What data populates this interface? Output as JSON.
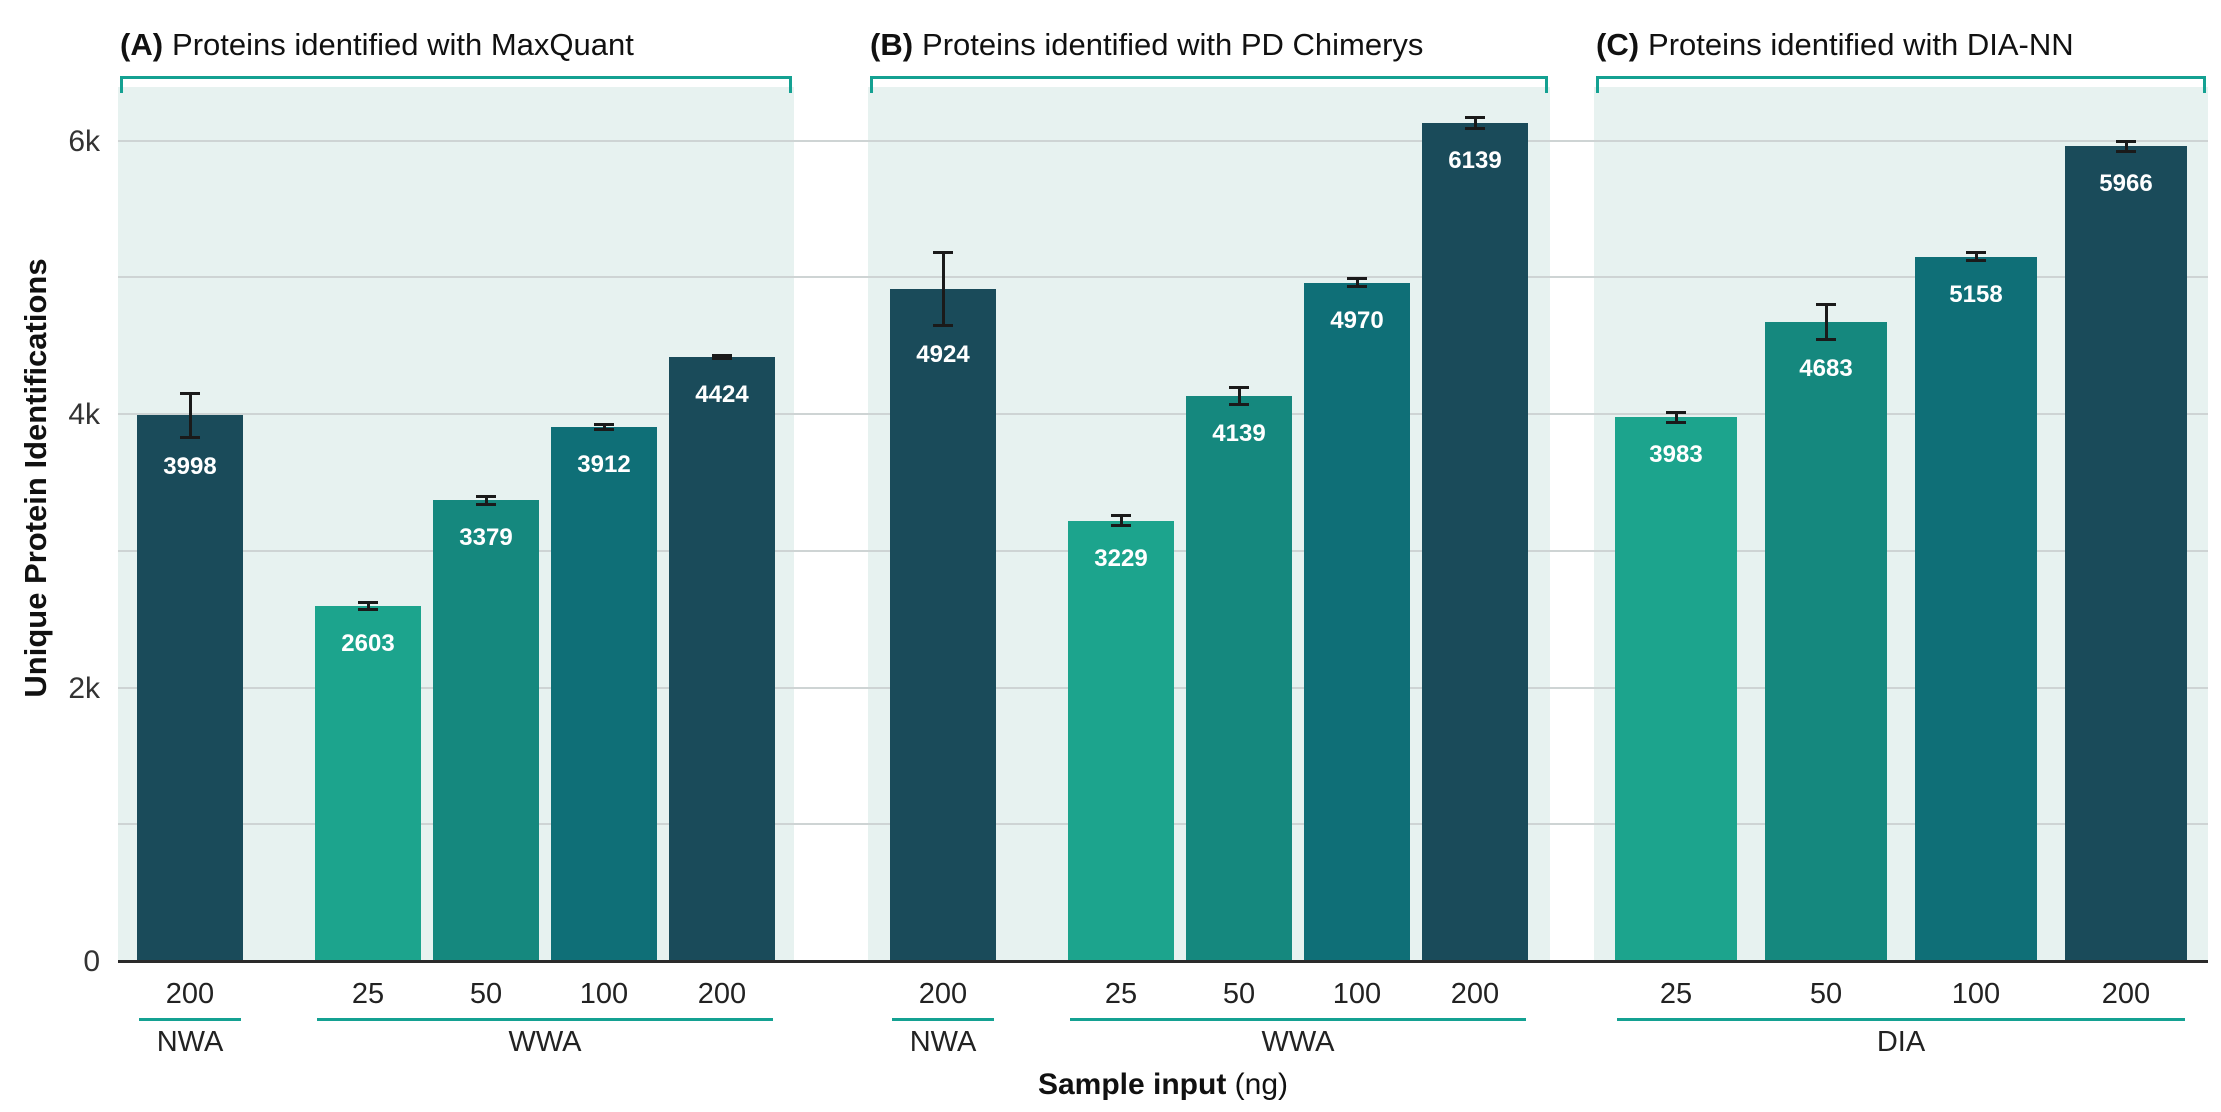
{
  "figure": {
    "y_axis_title": "Unique Protein Identifications",
    "x_axis_title_bold": "Sample input",
    "x_axis_title_unit": " (ng)"
  },
  "colors": {
    "bar_25": "#1CA48D",
    "bar_50": "#15887E",
    "bar_100": "#0F6F77",
    "bar_200": "#1A4B5A",
    "band_background": "#E7F2F0",
    "bracket": "#14A192",
    "gridline": "#CED4D4",
    "axis_line": "#2A2A2A",
    "bar_label_text": "#FFFFFF"
  },
  "chart_data": {
    "type": "bar",
    "title": "",
    "ylabel": "Unique Protein Identifications",
    "xlabel": "Sample input (ng)",
    "ylim": [
      0,
      6400
    ],
    "grid": true,
    "yticks": [
      {
        "value": 0,
        "label": "0"
      },
      {
        "value": 2000,
        "label": "2k"
      },
      {
        "value": 4000,
        "label": "4k"
      },
      {
        "value": 6000,
        "label": "6k"
      }
    ],
    "gridlines": [
      1000,
      2000,
      3000,
      4000,
      5000,
      6000
    ],
    "panels": [
      {
        "label": "(A)",
        "title": "Proteins identified with MaxQuant",
        "groups": [
          {
            "name": "NWA",
            "bars": [
              {
                "x": "200",
                "value": 3998,
                "error": 170
              }
            ]
          },
          {
            "name": "WWA",
            "bars": [
              {
                "x": "25",
                "value": 2603,
                "error": 35
              },
              {
                "x": "50",
                "value": 3379,
                "error": 40
              },
              {
                "x": "100",
                "value": 3912,
                "error": 30
              },
              {
                "x": "200",
                "value": 4424,
                "error": 20
              }
            ]
          }
        ]
      },
      {
        "label": "(B)",
        "title": "Proteins identified with PD Chimerys",
        "groups": [
          {
            "name": "NWA",
            "bars": [
              {
                "x": "200",
                "value": 4924,
                "error": 280
              }
            ]
          },
          {
            "name": "WWA",
            "bars": [
              {
                "x": "25",
                "value": 3229,
                "error": 45
              },
              {
                "x": "50",
                "value": 4139,
                "error": 75
              },
              {
                "x": "100",
                "value": 4970,
                "error": 40
              },
              {
                "x": "200",
                "value": 6139,
                "error": 50
              }
            ]
          }
        ]
      },
      {
        "label": "(C)",
        "title": "Proteins identified with DIA-NN",
        "groups": [
          {
            "name": "DIA",
            "bars": [
              {
                "x": "25",
                "value": 3983,
                "error": 45
              },
              {
                "x": "50",
                "value": 4683,
                "error": 140
              },
              {
                "x": "100",
                "value": 5158,
                "error": 40
              },
              {
                "x": "200",
                "value": 5966,
                "error": 50
              }
            ]
          }
        ]
      }
    ]
  }
}
